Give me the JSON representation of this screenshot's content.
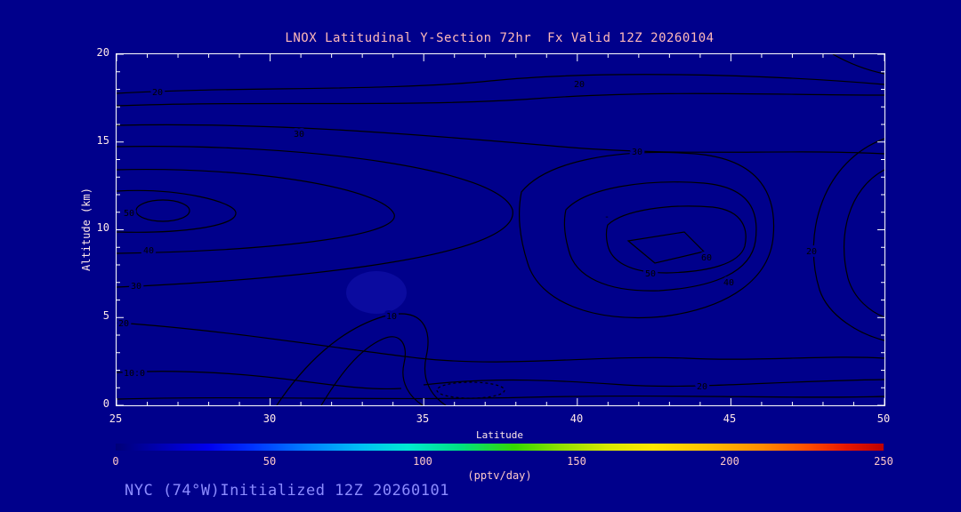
{
  "plot": {
    "title": "LNOX Latitudinal Y-Section 72hr  Fx Valid 12Z 20260104",
    "xlabel": "Latitude",
    "ylabel": "Altitude (km)",
    "xticks": [
      "25",
      "30",
      "35",
      "40",
      "45",
      "50"
    ],
    "yticks": [
      "20",
      "15",
      "10",
      "5",
      "0"
    ]
  },
  "colorbar": {
    "ticks": [
      "0",
      "50",
      "100",
      "150",
      "200",
      "250"
    ],
    "label": "(pptv/day)"
  },
  "annotation": {
    "text": "NYC (74°W)Initialized 12Z 20260101"
  },
  "contour_labels": [
    "20",
    "20",
    "30",
    "50",
    "40",
    "30",
    "20",
    "10.0",
    "10",
    "20",
    "30",
    "40",
    "50",
    "60",
    "20",
    "-"
  ],
  "colors": {
    "background": "#00008b",
    "contour_line": "#000000",
    "frame": "#ffffff",
    "title_text": "#ffb9b9",
    "axis_text": "#ffe9e9",
    "colorbar_text": "#ffc9c9",
    "annotation_text": "#8c8cff"
  },
  "chart_data": {
    "type": "heatmap",
    "variant": "filled-contour-cross-section",
    "title": "LNOX Latitudinal Y-Section 72hr  Fx Valid 12Z 20260104",
    "xlabel": "Latitude",
    "ylabel": "Altitude (km)",
    "xlim": [
      25,
      50
    ],
    "ylim": [
      0,
      20
    ],
    "xticks": [
      25,
      30,
      35,
      40,
      45,
      50
    ],
    "yticks": [
      0,
      5,
      10,
      15,
      20
    ],
    "units": "pptv/day",
    "colorbar": {
      "min": 0,
      "max": 250,
      "ticks": [
        0,
        50,
        100,
        150,
        200,
        250
      ],
      "label": "(pptv/day)",
      "palette": "rainbow (dark blue to dark red)"
    },
    "fill_note": "entire cross-section shaded in the lowest color bin (dark blue, < ~50 pptv/day); black line contours overlaid",
    "contour_levels_visible": [
      10,
      20,
      30,
      40,
      50,
      60,
      70
    ],
    "features": [
      {
        "name": "left-maximum",
        "lat": 26.5,
        "alt_km": 11.5,
        "enclosed_levels": [
          30,
          40,
          50,
          60
        ]
      },
      {
        "name": "right-maximum",
        "lat": 42,
        "alt_km": 10,
        "enclosed_levels": [
          30,
          40,
          50,
          60
        ]
      },
      {
        "name": "upper-level-20-contour",
        "note": "level-20 line spans full latitude range near 17-18 km"
      },
      {
        "name": "low-level-structure",
        "note": "wavy 10-20 level contours below ~3 km with a spike near lat 34; small dashed contour near lat 35, 0.8 km"
      }
    ],
    "station": "NYC (74°W)",
    "initialized": "12Z 20260101",
    "forecast_hour": "72hr",
    "valid": "12Z 20260104"
  }
}
